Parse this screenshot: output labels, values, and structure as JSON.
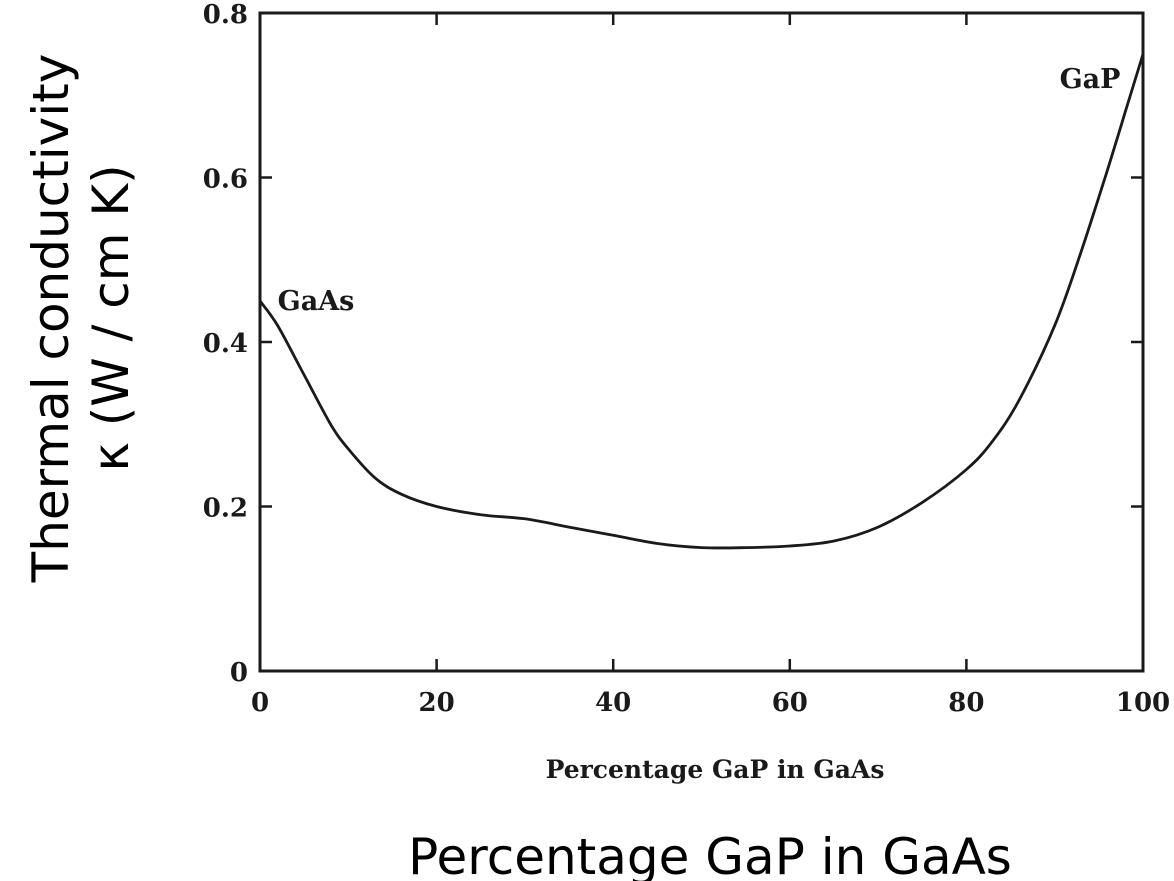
{
  "chart_data": {
    "type": "line",
    "title": "",
    "xlabel_inner": "Percentage GaP in GaAs",
    "xlabel": "Percentage GaP in GaAs",
    "ylabel_line1": "Thermal conductivity",
    "ylabel_line2": "κ (W / cm K)",
    "xlim": [
      0,
      100
    ],
    "ylim": [
      0,
      0.8
    ],
    "xticks": [
      0,
      20,
      40,
      60,
      80,
      100
    ],
    "xtick_labels": [
      "0",
      "20",
      "40",
      "60",
      "80",
      "100"
    ],
    "yticks": [
      0,
      0.2,
      0.4,
      0.6,
      0.8
    ],
    "ytick_labels": [
      "0",
      "0.2",
      "0.4",
      "0.6",
      "0.8"
    ],
    "grid": false,
    "annotations": [
      {
        "text": "GaAs",
        "x": 2,
        "y": 0.45
      },
      {
        "text": "GaP",
        "x": 94,
        "y": 0.72
      }
    ],
    "series": [
      {
        "x": [
          0,
          2,
          5,
          8,
          10,
          13,
          16,
          20,
          25,
          30,
          35,
          40,
          45,
          50,
          55,
          60,
          65,
          70,
          75,
          80,
          83,
          86,
          90,
          93,
          96,
          98,
          100
        ],
        "values": [
          0.45,
          0.42,
          0.36,
          0.3,
          0.27,
          0.235,
          0.215,
          0.2,
          0.19,
          0.185,
          0.175,
          0.165,
          0.155,
          0.15,
          0.15,
          0.152,
          0.158,
          0.175,
          0.205,
          0.245,
          0.28,
          0.33,
          0.42,
          0.51,
          0.61,
          0.68,
          0.75
        ]
      }
    ]
  }
}
